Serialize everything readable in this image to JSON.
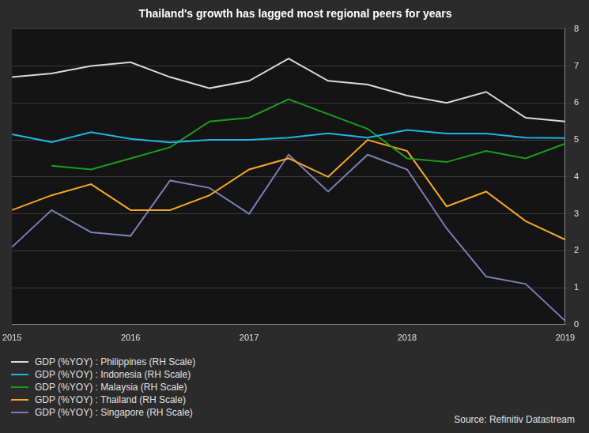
{
  "chart_data": {
    "type": "line",
    "title": "Thailand's growth has lagged most regional peers for years",
    "source": "Source: Refinitiv Datastream",
    "categories": [
      "2015",
      null,
      null,
      "2016",
      null,
      null,
      "2017",
      null,
      null,
      null,
      "2018",
      null,
      null,
      null,
      "2019"
    ],
    "series": [
      {
        "name": "GDP (%YOY) : Philippines (RH Scale)",
        "color": "#d9d9d9",
        "values": [
          6.7,
          6.8,
          7.0,
          7.1,
          6.7,
          6.4,
          6.6,
          7.2,
          6.6,
          6.5,
          6.2,
          6.0,
          6.3,
          5.6,
          5.5
        ]
      },
      {
        "name": "GDP (%YOY) : Indonesia (RH Scale)",
        "color": "#1fb4e8",
        "values": [
          5.15,
          4.94,
          5.21,
          5.03,
          4.93,
          5.0,
          5.0,
          5.06,
          5.18,
          5.06,
          5.27,
          5.17,
          5.17,
          5.06,
          5.05
        ]
      },
      {
        "name": "GDP (%YOY) : Malaysia (RH Scale)",
        "color": "#1a9e1a",
        "values": [
          null,
          4.3,
          4.2,
          4.5,
          4.8,
          5.5,
          5.6,
          6.1,
          5.7,
          5.3,
          4.5,
          4.4,
          4.7,
          4.5,
          4.9
        ]
      },
      {
        "name": "GDP (%YOY) : Thailand (RH Scale)",
        "color": "#f5a623",
        "values": [
          3.1,
          3.5,
          3.8,
          3.1,
          3.1,
          3.5,
          4.2,
          4.5,
          4.0,
          5.0,
          4.7,
          3.2,
          3.6,
          2.8,
          2.3
        ]
      },
      {
        "name": "GDP (%YOY) : Singapore (RH Scale)",
        "color": "#7b7fb0",
        "values": [
          2.1,
          3.1,
          2.5,
          2.4,
          3.9,
          3.7,
          3.0,
          4.6,
          3.6,
          4.6,
          4.2,
          2.6,
          1.3,
          1.1,
          0.1
        ]
      }
    ],
    "ylim": [
      0,
      8
    ],
    "yticks": [
      0,
      1,
      2,
      3,
      4,
      5,
      6,
      7,
      8
    ],
    "grid": true,
    "legend": "bottom"
  }
}
